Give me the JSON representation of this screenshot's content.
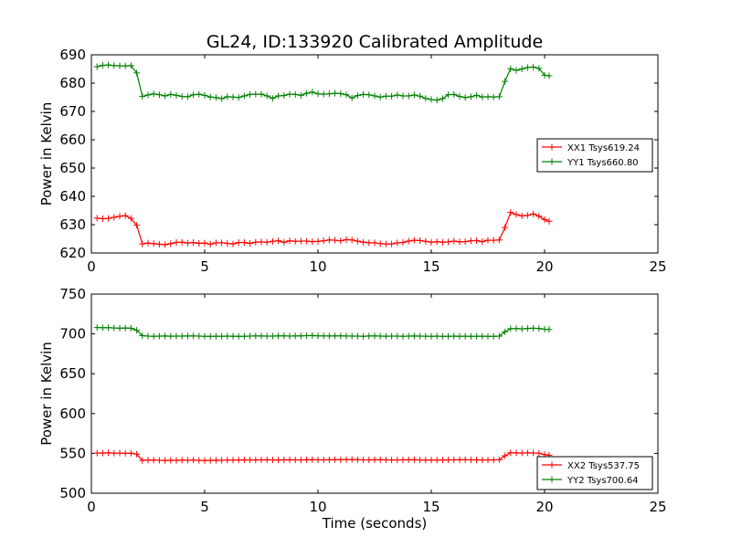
{
  "figure_title": "GL24, ID:133920 Calibrated Amplitude",
  "chart_data": [
    {
      "type": "line",
      "title": "GL24, ID:133920 Calibrated Amplitude",
      "xlabel": "",
      "ylabel": "Power in Kelvin",
      "xlim": [
        0,
        25
      ],
      "ylim": [
        620,
        690
      ],
      "xticks": [
        0,
        5,
        10,
        15,
        20,
        25
      ],
      "yticks": [
        620,
        630,
        640,
        650,
        660,
        670,
        680,
        690
      ],
      "grid": false,
      "legend_position": "center-right",
      "x": [
        0.25,
        0.5,
        0.75,
        1.0,
        1.25,
        1.5,
        1.75,
        2.0,
        2.25,
        2.5,
        2.75,
        3.0,
        3.25,
        3.5,
        3.75,
        4.0,
        4.25,
        4.5,
        4.75,
        5.0,
        5.25,
        5.5,
        5.75,
        6.0,
        6.25,
        6.5,
        6.75,
        7.0,
        7.25,
        7.5,
        7.75,
        8.0,
        8.25,
        8.5,
        8.75,
        9.0,
        9.25,
        9.5,
        9.75,
        10.0,
        10.25,
        10.5,
        10.75,
        11.0,
        11.25,
        11.5,
        11.75,
        12.0,
        12.25,
        12.5,
        12.75,
        13.0,
        13.25,
        13.5,
        13.75,
        14.0,
        14.25,
        14.5,
        14.75,
        15.0,
        15.25,
        15.5,
        15.75,
        16.0,
        16.25,
        16.5,
        16.75,
        17.0,
        17.25,
        17.5,
        17.75,
        18.0,
        18.25,
        18.5,
        18.75,
        19.0,
        19.25,
        19.5,
        19.75,
        20.0,
        20.2
      ],
      "series": [
        {
          "name": "XX1 Tsys619.24",
          "color": "#ff0000",
          "values": [
            632.3,
            632.1,
            632.2,
            632.6,
            633.0,
            633.2,
            632.2,
            629.8,
            623.2,
            623.5,
            623.3,
            623.1,
            622.9,
            623.3,
            623.7,
            623.8,
            623.5,
            623.7,
            623.4,
            623.5,
            623.1,
            623.6,
            623.6,
            623.4,
            623.2,
            623.7,
            623.7,
            623.4,
            623.8,
            623.9,
            623.8,
            624.1,
            624.3,
            623.8,
            624.3,
            624.1,
            624.2,
            624.2,
            624.0,
            624.1,
            624.3,
            624.6,
            624.5,
            624.3,
            624.7,
            624.6,
            624.2,
            623.8,
            623.6,
            623.6,
            623.3,
            623.2,
            623.2,
            623.6,
            623.7,
            624.2,
            624.5,
            624.4,
            624.1,
            623.8,
            624.0,
            623.8,
            623.9,
            624.2,
            623.9,
            624.0,
            624.3,
            624.4,
            624.0,
            624.5,
            624.5,
            624.6,
            629.0,
            634.3,
            633.6,
            633.1,
            633.3,
            633.8,
            633.0,
            631.8,
            631.2
          ]
        },
        {
          "name": "YY1 Tsys660.80",
          "color": "#008000",
          "values": [
            685.8,
            686.3,
            686.4,
            686.2,
            686.1,
            686.1,
            686.2,
            683.6,
            675.3,
            675.8,
            676.2,
            675.9,
            675.5,
            676.0,
            675.7,
            675.3,
            675.2,
            675.9,
            676.1,
            675.7,
            675.1,
            674.9,
            674.5,
            675.2,
            675.1,
            674.9,
            675.5,
            676.0,
            676.1,
            676.1,
            675.5,
            674.6,
            675.5,
            675.6,
            676.1,
            676.0,
            675.7,
            676.4,
            676.8,
            676.2,
            676.1,
            676.2,
            676.4,
            676.3,
            675.9,
            674.8,
            675.6,
            676.0,
            675.9,
            675.5,
            675.1,
            675.4,
            675.4,
            675.8,
            675.5,
            675.5,
            675.8,
            675.4,
            674.6,
            674.2,
            674.0,
            674.5,
            675.9,
            676.0,
            675.3,
            674.9,
            675.2,
            675.7,
            675.1,
            675.2,
            675.1,
            675.2,
            680.6,
            685.1,
            684.5,
            685.0,
            685.5,
            685.7,
            685.2,
            682.8,
            682.6
          ]
        }
      ]
    },
    {
      "type": "line",
      "title": "",
      "xlabel": "Time (seconds)",
      "ylabel": "Power in Kelvin",
      "xlim": [
        0,
        25
      ],
      "ylim": [
        500,
        750
      ],
      "xticks": [
        0,
        5,
        10,
        15,
        20,
        25
      ],
      "yticks": [
        500,
        550,
        600,
        650,
        700,
        750
      ],
      "grid": false,
      "legend_position": "bottom-right",
      "x": [
        0.25,
        0.5,
        0.75,
        1.0,
        1.25,
        1.5,
        1.75,
        2.0,
        2.25,
        2.5,
        2.75,
        3.0,
        3.25,
        3.5,
        3.75,
        4.0,
        4.25,
        4.5,
        4.75,
        5.0,
        5.25,
        5.5,
        5.75,
        6.0,
        6.25,
        6.5,
        6.75,
        7.0,
        7.25,
        7.5,
        7.75,
        8.0,
        8.25,
        8.5,
        8.75,
        9.0,
        9.25,
        9.5,
        9.75,
        10.0,
        10.25,
        10.5,
        10.75,
        11.0,
        11.25,
        11.5,
        11.75,
        12.0,
        12.25,
        12.5,
        12.75,
        13.0,
        13.25,
        13.5,
        13.75,
        14.0,
        14.25,
        14.5,
        14.75,
        15.0,
        15.25,
        15.5,
        15.75,
        16.0,
        16.25,
        16.5,
        16.75,
        17.0,
        17.25,
        17.5,
        17.75,
        18.0,
        18.25,
        18.5,
        18.75,
        19.0,
        19.25,
        19.5,
        19.75,
        20.0,
        20.2
      ],
      "series": [
        {
          "name": "XX2 Tsys537.75",
          "color": "#ff0000",
          "values": [
            550.5,
            550.3,
            550.7,
            550.2,
            550.4,
            550.1,
            550.2,
            549.0,
            541.2,
            541.5,
            541.6,
            541.3,
            541.0,
            541.4,
            541.2,
            541.5,
            541.3,
            541.6,
            541.1,
            541.0,
            541.2,
            541.4,
            541.3,
            541.5,
            541.6,
            541.7,
            541.8,
            541.9,
            541.7,
            541.9,
            542.0,
            541.8,
            541.6,
            541.9,
            542.0,
            541.9,
            541.8,
            542.0,
            542.1,
            541.9,
            541.9,
            542.0,
            542.1,
            542.0,
            542.2,
            542.3,
            542.1,
            541.9,
            541.8,
            542.0,
            542.1,
            541.9,
            541.7,
            541.8,
            541.9,
            542.0,
            542.1,
            541.8,
            541.6,
            541.5,
            541.6,
            541.7,
            541.8,
            541.9,
            542.0,
            542.1,
            541.9,
            541.9,
            541.7,
            541.8,
            541.9,
            542.0,
            547.0,
            550.8,
            550.6,
            550.4,
            550.7,
            550.5,
            550.2,
            548.5,
            547.8
          ]
        },
        {
          "name": "YY2 Tsys700.64",
          "color": "#008000",
          "values": [
            708.0,
            707.8,
            707.9,
            707.5,
            707.2,
            707.4,
            707.1,
            704.5,
            697.8,
            697.3,
            697.0,
            697.2,
            697.4,
            697.1,
            697.3,
            697.2,
            697.4,
            697.5,
            697.2,
            697.0,
            696.9,
            697.1,
            697.0,
            697.2,
            697.1,
            696.9,
            697.0,
            697.2,
            697.5,
            697.4,
            697.3,
            697.2,
            697.5,
            697.6,
            697.3,
            697.5,
            697.6,
            697.8,
            697.9,
            697.6,
            697.5,
            697.4,
            697.5,
            697.6,
            697.4,
            697.3,
            697.2,
            697.0,
            697.4,
            697.5,
            697.3,
            697.1,
            697.2,
            697.3,
            697.0,
            697.2,
            697.4,
            697.3,
            697.1,
            697.0,
            697.2,
            696.9,
            697.0,
            697.2,
            697.0,
            697.1,
            696.9,
            697.0,
            697.1,
            696.9,
            697.0,
            697.2,
            702.5,
            706.5,
            706.8,
            706.3,
            706.9,
            707.1,
            706.8,
            705.9,
            705.6
          ]
        }
      ]
    }
  ]
}
